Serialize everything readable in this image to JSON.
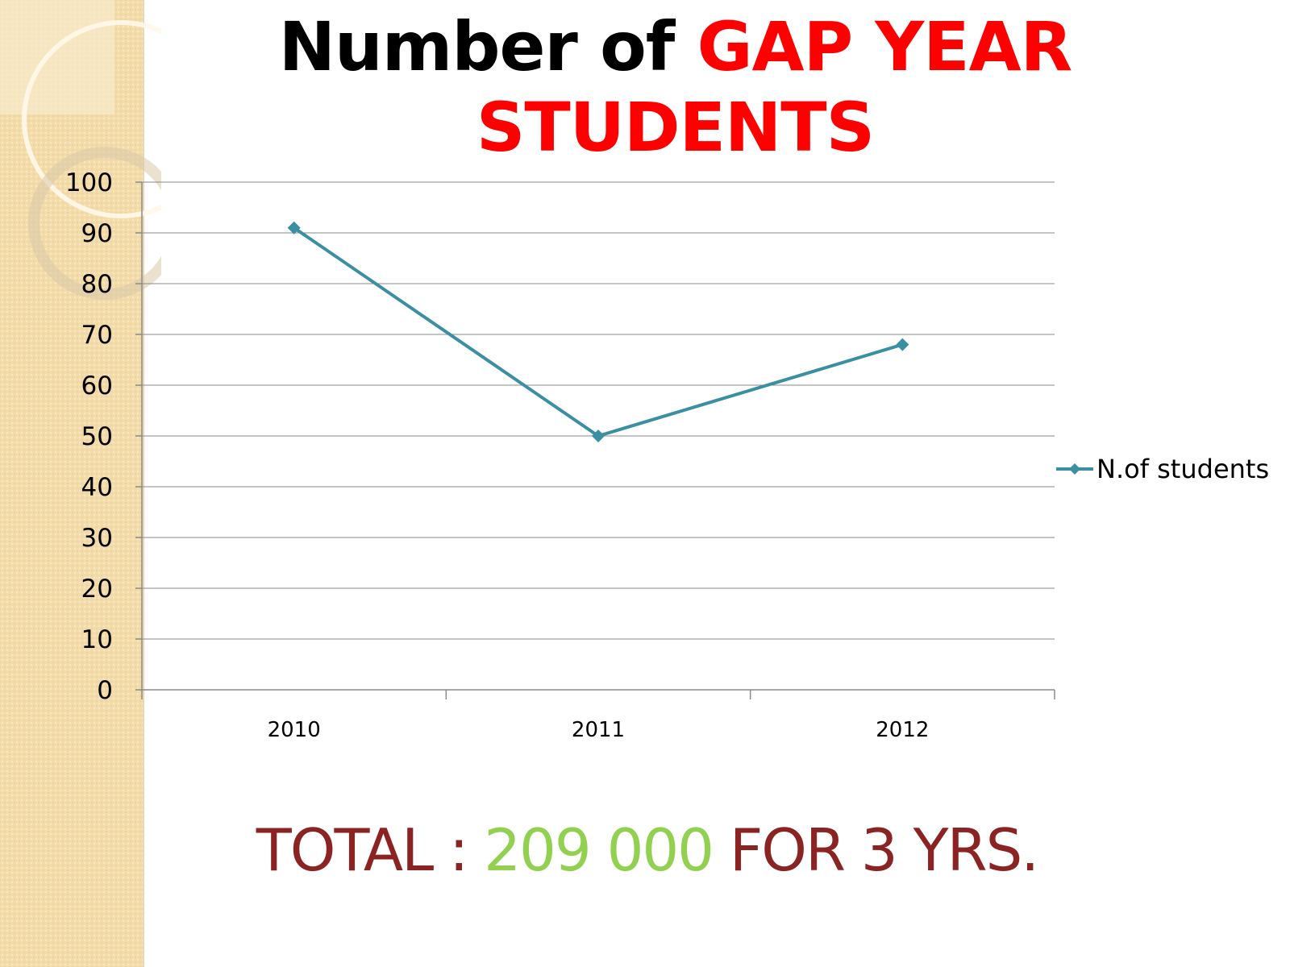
{
  "title": {
    "part1": "Number of",
    "part2": "GAP YEAR",
    "part3": "STUDENTS"
  },
  "footer": {
    "label": "TOTAL :",
    "value": "209 000",
    "suffix": "FOR 3 YRS."
  },
  "colors": {
    "series": "#3a8fa3",
    "title_red": "#ff0000",
    "footer_dark": "#8b2323",
    "footer_green": "#92d050",
    "band": "#f3dcaa"
  },
  "chart_data": {
    "type": "line",
    "title": "Number of GAP YEAR STUDENTS",
    "categories": [
      "2010",
      "2011",
      "2012"
    ],
    "series": [
      {
        "name": "N.of students",
        "values": [
          91,
          50,
          68
        ],
        "marker": "diamond"
      }
    ],
    "ylim": [
      0,
      100
    ],
    "yticks": [
      "0",
      "10",
      "20",
      "30",
      "40",
      "50",
      "60",
      "70",
      "80",
      "90",
      "100"
    ],
    "grid": true,
    "legend": "right"
  }
}
